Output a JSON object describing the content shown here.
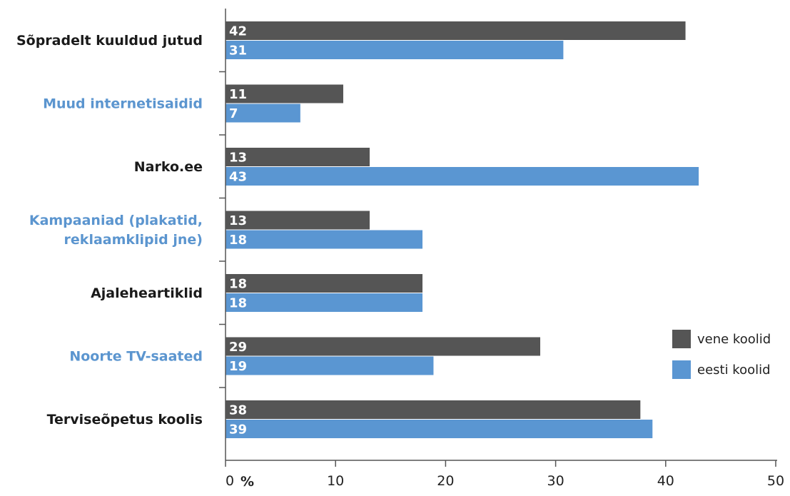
{
  "chart_data": {
    "type": "bar",
    "orientation": "horizontal",
    "categories": [
      [
        "Sõpradelt kuuldud jutud"
      ],
      [
        "Muud internetisaidid"
      ],
      [
        "Narko.ee"
      ],
      [
        "Kampaaniad (plakatid,",
        "reklaamklipid jne)"
      ],
      [
        "Ajaleheartiklid"
      ],
      [
        "Noorte TV-saated"
      ],
      [
        "Terviseõpetus koolis"
      ]
    ],
    "category_label_colors": [
      "#1a1a1a",
      "#5b95cf",
      "#1a1a1a",
      "#5b95cf",
      "#1a1a1a",
      "#5b95cf",
      "#1a1a1a"
    ],
    "series": [
      {
        "name": "vene koolid",
        "color": "#555555",
        "values": [
          42,
          11,
          13,
          13,
          18,
          29,
          38
        ],
        "display_values": [
          41.8,
          10.7,
          13.1,
          13.1,
          17.9,
          28.6,
          37.7
        ]
      },
      {
        "name": "eesti koolid",
        "color": "#5a96d2",
        "values": [
          31,
          7,
          43,
          18,
          18,
          19,
          39
        ],
        "display_values": [
          30.7,
          6.8,
          43.0,
          17.9,
          17.9,
          18.9,
          38.8
        ]
      }
    ],
    "xlim": [
      0,
      50
    ],
    "xticks": [
      0,
      10,
      20,
      30,
      40,
      50
    ],
    "xlabel": "%",
    "grid": false,
    "legend_position": "right"
  }
}
